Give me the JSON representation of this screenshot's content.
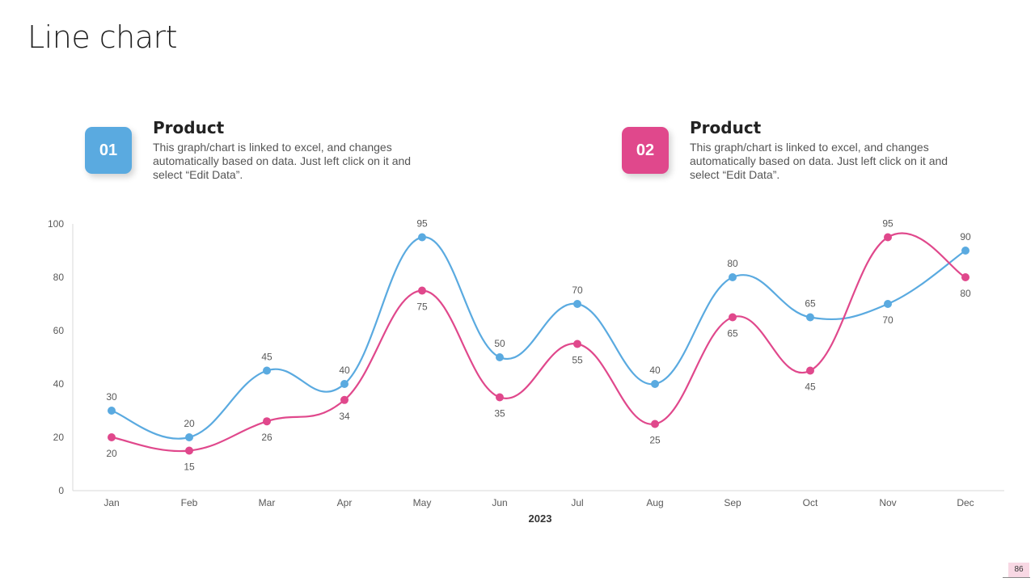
{
  "page": {
    "title": "Line chart",
    "page_number": "86"
  },
  "cards": [
    {
      "badge": "01",
      "title": "Product",
      "description": "This graph/chart is linked to excel, and changes automatically based on data. Just left click on it and select “Edit Data”.",
      "color": "#5aaae0"
    },
    {
      "badge": "02",
      "title": "Product",
      "description": "This graph/chart is linked to excel, and changes automatically based on data. Just left click on it and select “Edit Data”.",
      "color": "#e0488c"
    }
  ],
  "chart_data": {
    "type": "line",
    "categories": [
      "Jan",
      "Feb",
      "Mar",
      "Apr",
      "May",
      "Jun",
      "Jul",
      "Aug",
      "Sep",
      "Oct",
      "Nov",
      "Dec"
    ],
    "series": [
      {
        "color": "#5aaae0",
        "values": [
          30,
          20,
          45,
          40,
          95,
          50,
          70,
          40,
          80,
          65,
          70,
          90
        ]
      },
      {
        "color": "#e0488c",
        "values": [
          20,
          15,
          26,
          34,
          75,
          35,
          55,
          25,
          65,
          45,
          95,
          80
        ]
      }
    ],
    "xlabel": "2023",
    "ylabel": "",
    "ylim": [
      0,
      100
    ],
    "yticks": [
      0,
      20,
      40,
      60,
      80,
      100
    ],
    "grid": false,
    "smooth": true
  }
}
